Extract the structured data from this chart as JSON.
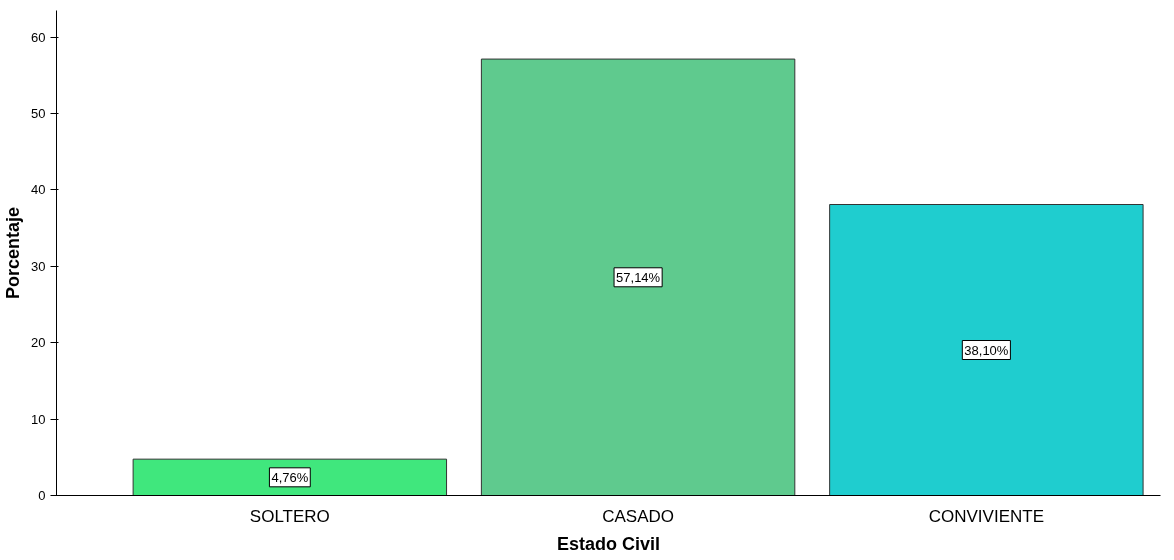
{
  "chart_data": {
    "type": "bar",
    "xlabel": "Estado Civil",
    "ylabel": "Porcentaje",
    "categories": [
      "SOLTERO",
      "CASADO",
      "CONVIVIENTE"
    ],
    "values": [
      4.76,
      57.14,
      38.1
    ],
    "colors": [
      "#40e77d",
      "#5fca8e",
      "#1fcdcf"
    ],
    "value_labels": [
      "4,76%",
      "57,14%",
      "38,10%"
    ],
    "ylim": [
      0,
      63.5
    ],
    "yticks": [
      0,
      10,
      20,
      30,
      40,
      50,
      60
    ],
    "grid": false
  }
}
